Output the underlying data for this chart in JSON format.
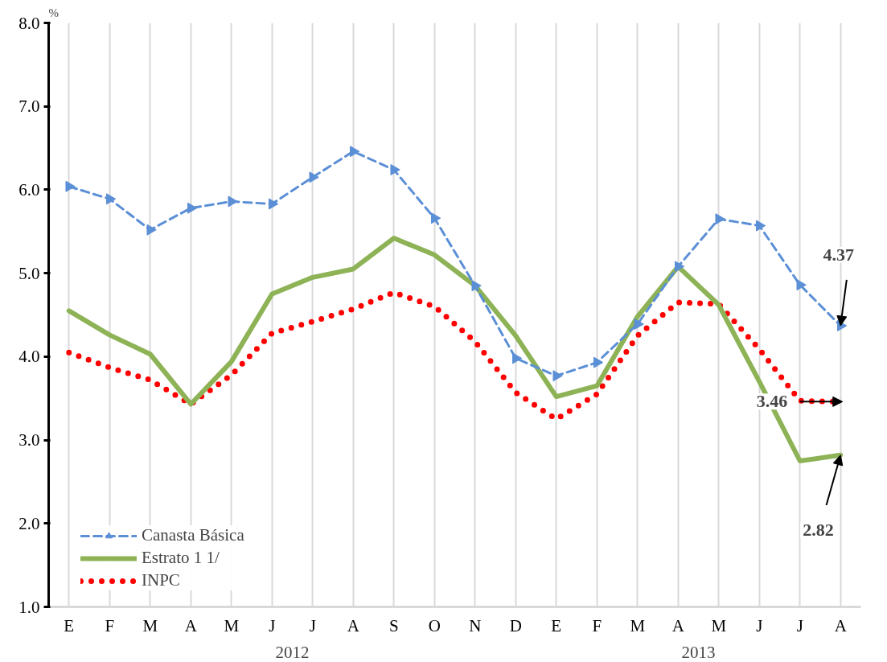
{
  "chart_data": {
    "type": "line",
    "ylabel": "%",
    "categories": [
      "E",
      "F",
      "M",
      "A",
      "M",
      "J",
      "J",
      "A",
      "S",
      "O",
      "N",
      "D",
      "E",
      "F",
      "M",
      "A",
      "M",
      "J",
      "J",
      "A"
    ],
    "series": [
      {
        "name": "Canasta Básica",
        "color": "#5b8fd6",
        "line_style": "dashed",
        "marker": "triangle",
        "values": [
          6.04,
          5.89,
          5.52,
          5.78,
          5.86,
          5.83,
          6.15,
          6.46,
          6.24,
          5.66,
          4.85,
          3.98,
          3.77,
          3.93,
          4.39,
          5.08,
          5.65,
          5.57,
          4.86,
          4.37
        ],
        "value_labels": [
          null,
          null,
          null,
          null,
          null,
          null,
          null,
          null,
          null,
          null,
          null,
          null,
          null,
          null,
          null,
          null,
          null,
          null,
          null,
          "4.37"
        ]
      },
      {
        "name": "Estrato 1 1/",
        "color": "#8db356",
        "line_style": "solid",
        "values": [
          4.55,
          4.26,
          4.03,
          3.43,
          3.94,
          4.75,
          4.95,
          5.05,
          5.42,
          5.22,
          4.85,
          4.25,
          3.52,
          3.65,
          4.48,
          5.08,
          4.62,
          3.7,
          2.75,
          2.82
        ],
        "value_labels": [
          null,
          null,
          null,
          null,
          null,
          null,
          null,
          null,
          null,
          null,
          null,
          null,
          null,
          null,
          null,
          null,
          null,
          null,
          null,
          "2.82"
        ]
      },
      {
        "name": "INPC",
        "color": "#ff0000",
        "line_style": "dotted",
        "values": [
          4.05,
          3.87,
          3.72,
          3.43,
          3.78,
          4.28,
          4.42,
          4.57,
          4.77,
          4.6,
          4.18,
          3.57,
          3.25,
          3.55,
          4.25,
          4.65,
          4.63,
          4.09,
          3.47,
          3.46
        ],
        "value_labels": [
          null,
          null,
          null,
          null,
          null,
          null,
          null,
          null,
          null,
          null,
          null,
          null,
          null,
          null,
          null,
          null,
          null,
          null,
          null,
          "3.46"
        ]
      }
    ],
    "ylim": [
      1.0,
      8.0
    ],
    "yticks": [
      {
        "value": 1,
        "label": "1.0"
      },
      {
        "value": 2,
        "label": "2.0"
      },
      {
        "value": 3,
        "label": "3.0"
      },
      {
        "value": 4,
        "label": "4.0"
      },
      {
        "value": 5,
        "label": "5.0"
      },
      {
        "value": 6,
        "label": "6.0"
      },
      {
        "value": 7,
        "label": "7.0"
      },
      {
        "value": 8,
        "label": "8.0"
      }
    ],
    "grid": "x",
    "legend": "bottom left",
    "annotations": [
      "2012",
      "2013"
    ]
  }
}
